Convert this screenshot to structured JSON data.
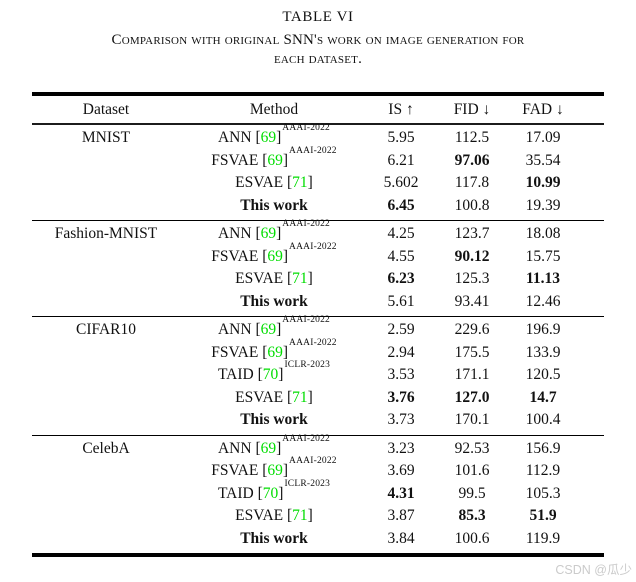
{
  "title": "TABLE VI",
  "caption": {
    "line1": "Comparison with original SNN's work on image generation for",
    "line2": "each dataset."
  },
  "watermark": "CSDN @瓜少",
  "colors": {
    "citation_green": "#00dd00",
    "rule_black": "#000000",
    "watermark_gray": "#cbcbcb"
  },
  "table": {
    "columns": [
      "Dataset",
      "Method",
      "IS ↑",
      "FID ↓",
      "FAD ↓"
    ],
    "groups": [
      {
        "dataset": "MNIST",
        "rows": [
          {
            "method": "ANN",
            "cite": "[69]",
            "sup": "AAAI-2022",
            "method_bold": false,
            "vals": [
              "5.95",
              "112.5",
              "17.09"
            ],
            "bold": [
              false,
              false,
              false
            ]
          },
          {
            "method": "FSVAE",
            "cite": "[69]",
            "sup": "AAAI-2022",
            "method_bold": false,
            "vals": [
              "6.21",
              "97.06",
              "35.54"
            ],
            "bold": [
              false,
              true,
              false
            ]
          },
          {
            "method": "ESVAE",
            "cite": "[71]",
            "sup": "",
            "method_bold": false,
            "vals": [
              "5.602",
              "117.8",
              "10.99"
            ],
            "bold": [
              false,
              false,
              true
            ]
          },
          {
            "method": "This work",
            "cite": "",
            "sup": "",
            "method_bold": true,
            "vals": [
              "6.45",
              "100.8",
              "19.39"
            ],
            "bold": [
              true,
              false,
              false
            ]
          }
        ]
      },
      {
        "dataset": "Fashion-MNIST",
        "rows": [
          {
            "method": "ANN",
            "cite": "[69]",
            "sup": "AAAI-2022",
            "method_bold": false,
            "vals": [
              "4.25",
              "123.7",
              "18.08"
            ],
            "bold": [
              false,
              false,
              false
            ]
          },
          {
            "method": "FSVAE",
            "cite": "[69]",
            "sup": "AAAI-2022",
            "method_bold": false,
            "vals": [
              "4.55",
              "90.12",
              "15.75"
            ],
            "bold": [
              false,
              true,
              false
            ]
          },
          {
            "method": "ESVAE",
            "cite": "[71]",
            "sup": "",
            "method_bold": false,
            "vals": [
              "6.23",
              "125.3",
              "11.13"
            ],
            "bold": [
              true,
              false,
              true
            ]
          },
          {
            "method": "This work",
            "cite": "",
            "sup": "",
            "method_bold": true,
            "vals": [
              "5.61",
              "93.41",
              "12.46"
            ],
            "bold": [
              false,
              false,
              false
            ]
          }
        ]
      },
      {
        "dataset": "CIFAR10",
        "rows": [
          {
            "method": "ANN",
            "cite": "[69]",
            "sup": "AAAI-2022",
            "method_bold": false,
            "vals": [
              "2.59",
              "229.6",
              "196.9"
            ],
            "bold": [
              false,
              false,
              false
            ]
          },
          {
            "method": "FSVAE",
            "cite": "[69]",
            "sup": "AAAI-2022",
            "method_bold": false,
            "vals": [
              "2.94",
              "175.5",
              "133.9"
            ],
            "bold": [
              false,
              false,
              false
            ]
          },
          {
            "method": "TAID",
            "cite": "[70]",
            "sup": "ICLR-2023",
            "method_bold": false,
            "vals": [
              "3.53",
              "171.1",
              "120.5"
            ],
            "bold": [
              false,
              false,
              false
            ]
          },
          {
            "method": "ESVAE",
            "cite": "[71]",
            "sup": "",
            "method_bold": false,
            "vals": [
              "3.76",
              "127.0",
              "14.7"
            ],
            "bold": [
              true,
              true,
              true
            ]
          },
          {
            "method": "This work",
            "cite": "",
            "sup": "",
            "method_bold": true,
            "vals": [
              "3.73",
              "170.1",
              "100.4"
            ],
            "bold": [
              false,
              false,
              false
            ]
          }
        ]
      },
      {
        "dataset": "CelebA",
        "rows": [
          {
            "method": "ANN",
            "cite": "[69]",
            "sup": "AAAI-2022",
            "method_bold": false,
            "vals": [
              "3.23",
              "92.53",
              "156.9"
            ],
            "bold": [
              false,
              false,
              false
            ]
          },
          {
            "method": "FSVAE",
            "cite": "[69]",
            "sup": "AAAI-2022",
            "method_bold": false,
            "vals": [
              "3.69",
              "101.6",
              "112.9"
            ],
            "bold": [
              false,
              false,
              false
            ]
          },
          {
            "method": "TAID",
            "cite": "[70]",
            "sup": "ICLR-2023",
            "method_bold": false,
            "vals": [
              "4.31",
              "99.5",
              "105.3"
            ],
            "bold": [
              true,
              false,
              false
            ]
          },
          {
            "method": "ESVAE",
            "cite": "[71]",
            "sup": "",
            "method_bold": false,
            "vals": [
              "3.87",
              "85.3",
              "51.9"
            ],
            "bold": [
              false,
              true,
              true
            ]
          },
          {
            "method": "This work",
            "cite": "",
            "sup": "",
            "method_bold": true,
            "vals": [
              "3.84",
              "100.6",
              "119.9"
            ],
            "bold": [
              false,
              false,
              false
            ]
          }
        ]
      }
    ]
  }
}
